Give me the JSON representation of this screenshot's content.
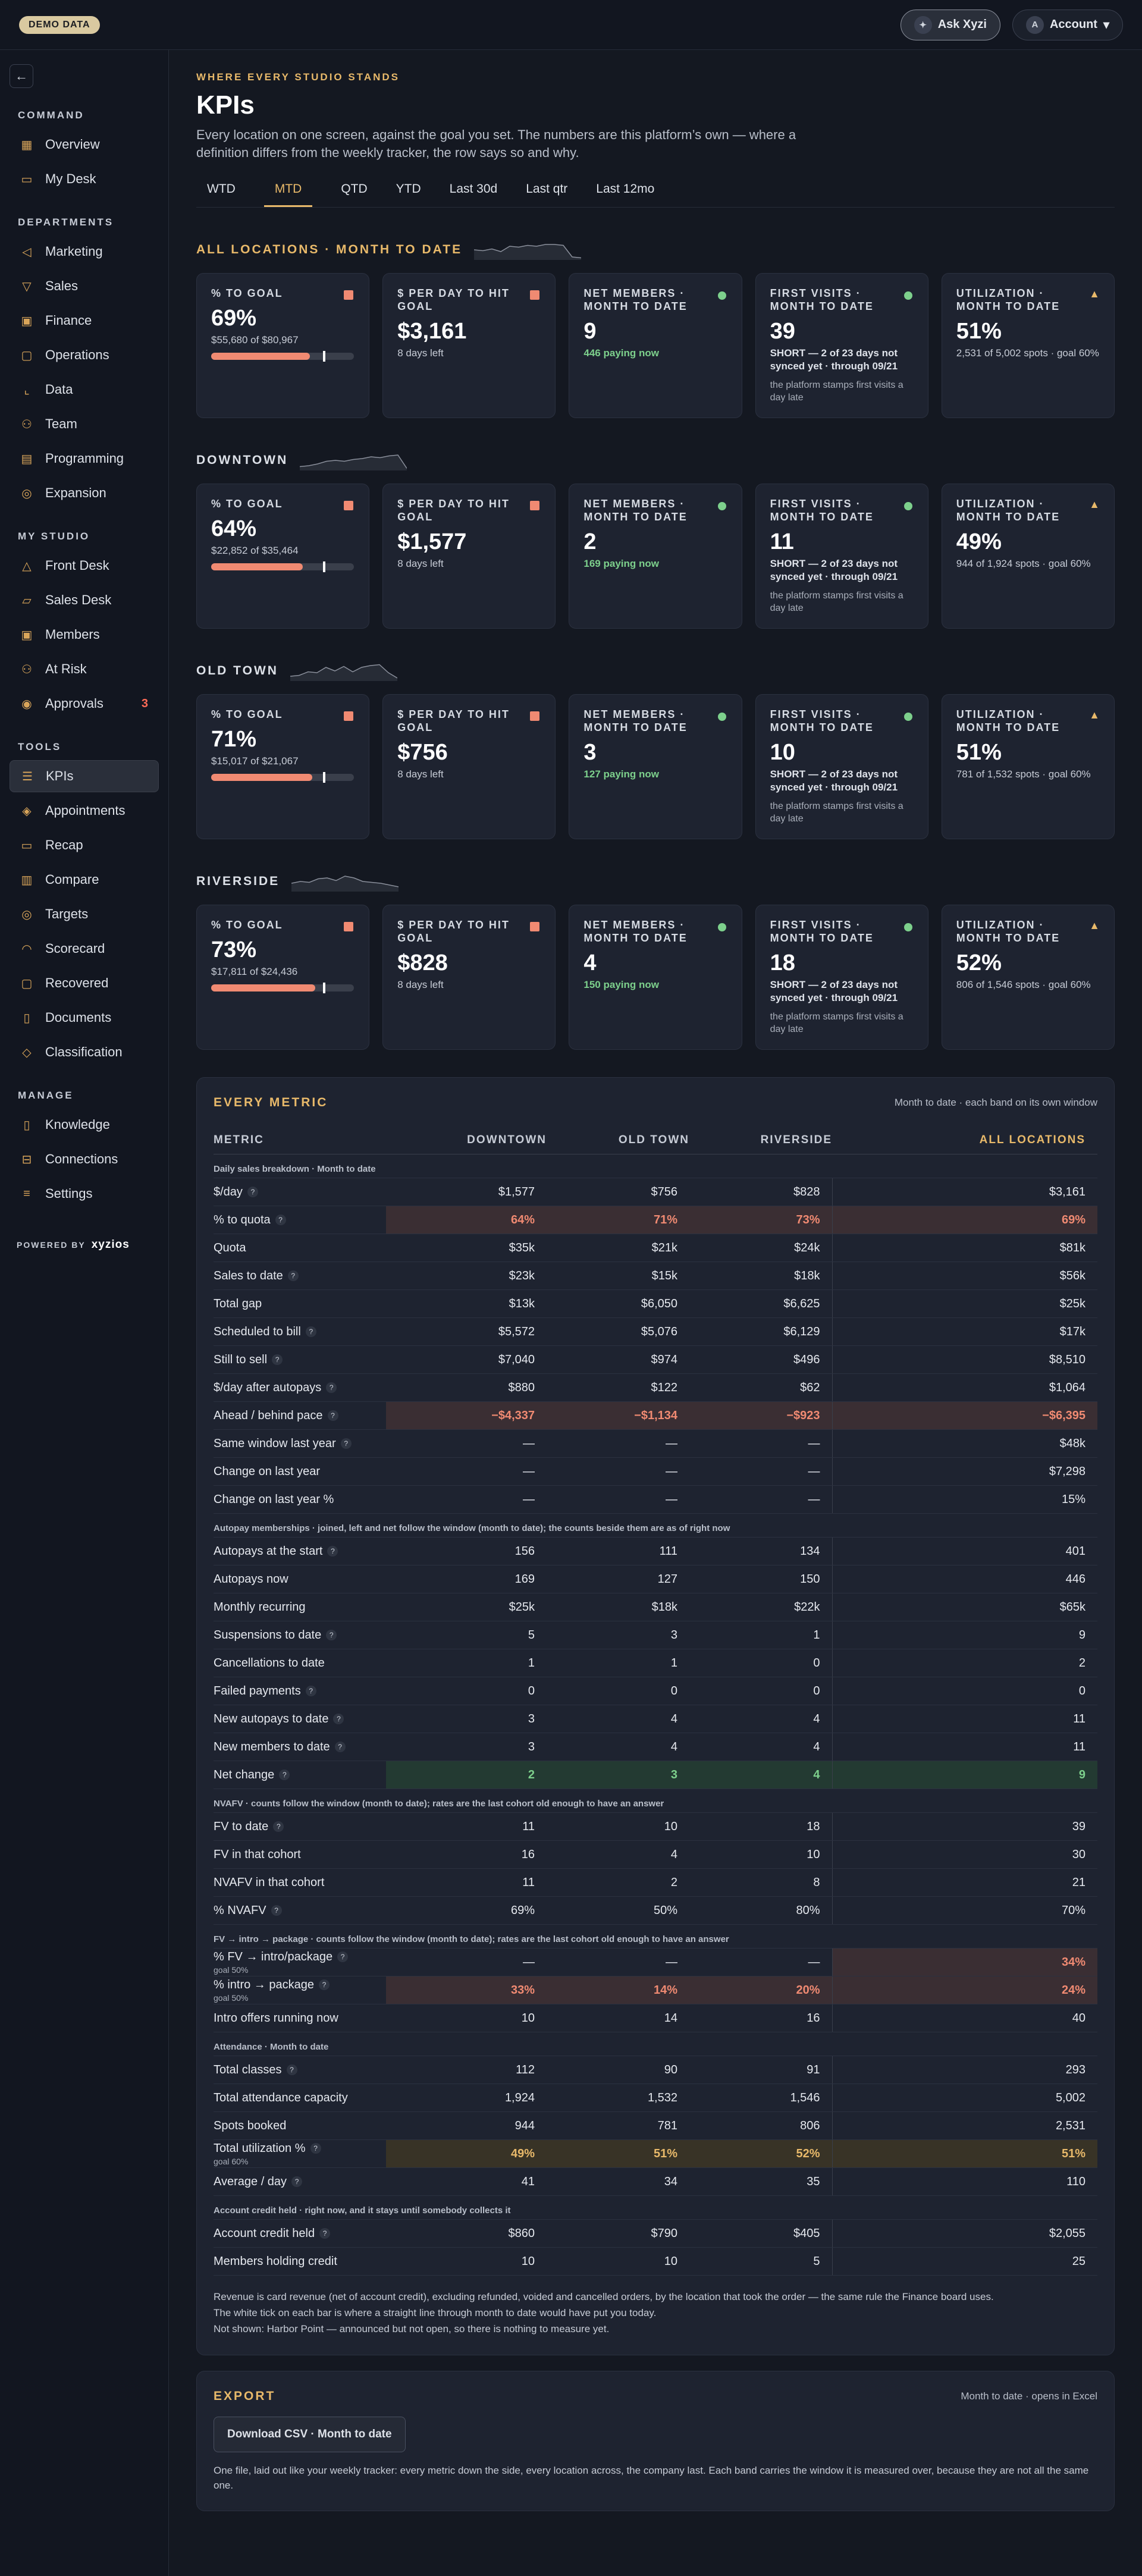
{
  "topbar": {
    "demo_label": "DEMO DATA",
    "ask_label": "Ask Xyzi",
    "account_label": "Account",
    "account_initial": "A",
    "ask_icon": "sparkle-icon",
    "chevron": "▾"
  },
  "sidebar": {
    "sections": [
      {
        "label": "COMMAND",
        "items": [
          {
            "label": "Overview",
            "icon": "▦"
          },
          {
            "label": "My Desk",
            "icon": "▭"
          }
        ]
      },
      {
        "label": "DEPARTMENTS",
        "items": [
          {
            "label": "Marketing",
            "icon": "◁"
          },
          {
            "label": "Sales",
            "icon": "▽"
          },
          {
            "label": "Finance",
            "icon": "▣"
          },
          {
            "label": "Operations",
            "icon": "▢"
          },
          {
            "label": "Data",
            "icon": "⌞"
          },
          {
            "label": "Team",
            "icon": "⚇"
          },
          {
            "label": "Programming",
            "icon": "▤"
          },
          {
            "label": "Expansion",
            "icon": "◎"
          }
        ]
      },
      {
        "label": "MY STUDIO",
        "items": [
          {
            "label": "Front Desk",
            "icon": "△"
          },
          {
            "label": "Sales Desk",
            "icon": "▱"
          },
          {
            "label": "Members",
            "icon": "▣"
          },
          {
            "label": "At Risk",
            "icon": "⚇"
          },
          {
            "label": "Approvals",
            "icon": "◉",
            "badge": "3"
          }
        ]
      },
      {
        "label": "TOOLS",
        "items": [
          {
            "label": "KPIs",
            "icon": "☰",
            "active": true
          },
          {
            "label": "Appointments",
            "icon": "◈"
          },
          {
            "label": "Recap",
            "icon": "▭"
          },
          {
            "label": "Compare",
            "icon": "▥"
          },
          {
            "label": "Targets",
            "icon": "◎"
          },
          {
            "label": "Scorecard",
            "icon": "◠"
          },
          {
            "label": "Recovered",
            "icon": "▢"
          },
          {
            "label": "Documents",
            "icon": "▯"
          },
          {
            "label": "Classification",
            "icon": "◇"
          }
        ]
      },
      {
        "label": "MANAGE",
        "items": [
          {
            "label": "Knowledge",
            "icon": "▯"
          },
          {
            "label": "Connections",
            "icon": "⊟"
          },
          {
            "label": "Settings",
            "icon": "≡"
          }
        ]
      }
    ],
    "powered_label": "POWERED BY",
    "powered_brand": "xyzios"
  },
  "header": {
    "eyebrow": "WHERE EVERY STUDIO STANDS",
    "title": "KPIs",
    "subtitle": "Every location on one screen, against the goal you set. The numbers are this platform’s own — where a definition differs from the weekly tracker, the row says so and why."
  },
  "tabs": [
    {
      "label": "WTD"
    },
    {
      "label": "MTD",
      "active": true
    },
    {
      "label": "QTD"
    },
    {
      "label": "YTD"
    },
    {
      "label": "Last 30d"
    },
    {
      "label": "Last qtr"
    },
    {
      "label": "Last 12mo"
    }
  ],
  "card_labels": {
    "goal": "% TO GOAL",
    "perday": "$ PER DAY TO HIT GOAL",
    "members": "NET MEMBERS · MONTH TO DATE",
    "visits": "FIRST VISITS · MONTH TO DATE",
    "util": "UTILIZATION · MONTH TO DATE"
  },
  "bands": [
    {
      "title": "ALL LOCATIONS · MONTH TO DATE",
      "gold": true,
      "spark": [
        0.5,
        0.55,
        0.45,
        0.6,
        0.3,
        0.35,
        0.25,
        0.3,
        0.2,
        0.2,
        0.25,
        0.9,
        0.95
      ],
      "goal_pct": "69%",
      "goal_fill": 0.69,
      "goal_sub": "$55,680 of $80,967",
      "perday": "$3,161",
      "perday_sub": "8 days left",
      "members": "9",
      "members_sub": "446 paying now",
      "visits": "39",
      "visits_sub": "SHORT — 2 of 23 days not synced yet · through 09/21",
      "visits_note": "the platform stamps first visits a day late",
      "util": "51%",
      "util_sub": "2,531 of 5,002 spots · goal 60%"
    },
    {
      "title": "DOWNTOWN",
      "gold": false,
      "spark": [
        0.85,
        0.8,
        0.7,
        0.55,
        0.5,
        0.55,
        0.45,
        0.4,
        0.3,
        0.35,
        0.25,
        0.2,
        0.95
      ],
      "goal_pct": "64%",
      "goal_fill": 0.64,
      "goal_sub": "$22,852 of $35,464",
      "perday": "$1,577",
      "perday_sub": "8 days left",
      "members": "2",
      "members_sub": "169 paying now",
      "visits": "11",
      "visits_sub": "SHORT — 2 of 23 days not synced yet · through 09/21",
      "visits_note": "the platform stamps first visits a day late",
      "util": "49%",
      "util_sub": "944 of 1,924 spots · goal 60%"
    },
    {
      "title": "OLD TOWN",
      "gold": false,
      "spark": [
        0.8,
        0.75,
        0.55,
        0.6,
        0.3,
        0.5,
        0.25,
        0.55,
        0.3,
        0.2,
        0.15,
        0.6,
        0.9
      ],
      "goal_pct": "71%",
      "goal_fill": 0.71,
      "goal_sub": "$15,017 of $21,067",
      "perday": "$756",
      "perday_sub": "8 days left",
      "members": "3",
      "members_sub": "127 paying now",
      "visits": "10",
      "visits_sub": "SHORT — 2 of 23 days not synced yet · through 09/21",
      "visits_note": "the platform stamps first visits a day late",
      "util": "51%",
      "util_sub": "781 of 1,532 spots · goal 60%"
    },
    {
      "title": "RIVERSIDE",
      "gold": false,
      "spark": [
        0.6,
        0.5,
        0.55,
        0.35,
        0.3,
        0.45,
        0.2,
        0.3,
        0.5,
        0.55,
        0.6,
        0.7,
        0.8
      ],
      "goal_pct": "73%",
      "goal_fill": 0.73,
      "goal_sub": "$17,811 of $24,436",
      "perday": "$828",
      "perday_sub": "8 days left",
      "members": "4",
      "members_sub": "150 paying now",
      "visits": "18",
      "visits_sub": "SHORT — 2 of 23 days not synced yet · through 09/21",
      "visits_note": "the platform stamps first visits a day late",
      "util": "52%",
      "util_sub": "806 of 1,546 spots · goal 60%"
    }
  ],
  "metrics": {
    "title": "EVERY METRIC",
    "note": "Month to date · each band on its own window",
    "headers": [
      "METRIC",
      "DOWNTOWN",
      "OLD TOWN",
      "RIVERSIDE",
      "ALL LOCATIONS"
    ],
    "groups": [
      {
        "label": "Daily sales breakdown · Month to date",
        "rows": [
          {
            "label": "$/day",
            "help": true,
            "v": [
              "$1,577",
              "$756",
              "$828",
              "$3,161"
            ]
          },
          {
            "label": "% to quota",
            "help": true,
            "style": "red",
            "v": [
              "64%",
              "71%",
              "73%",
              "69%"
            ]
          },
          {
            "label": "Quota",
            "v": [
              "$35k",
              "$21k",
              "$24k",
              "$81k"
            ]
          },
          {
            "label": "Sales to date",
            "help": true,
            "v": [
              "$23k",
              "$15k",
              "$18k",
              "$56k"
            ]
          },
          {
            "label": "Total gap",
            "v": [
              "$13k",
              "$6,050",
              "$6,625",
              "$25k"
            ]
          },
          {
            "label": "Scheduled to bill",
            "help": true,
            "v": [
              "$5,572",
              "$5,076",
              "$6,129",
              "$17k"
            ]
          },
          {
            "label": "Still to sell",
            "help": true,
            "v": [
              "$7,040",
              "$974",
              "$496",
              "$8,510"
            ]
          },
          {
            "label": "$/day after autopays",
            "help": true,
            "v": [
              "$880",
              "$122",
              "$62",
              "$1,064"
            ]
          },
          {
            "label": "Ahead / behind pace",
            "help": true,
            "style": "red",
            "v": [
              "−$4,337",
              "−$1,134",
              "−$923",
              "−$6,395"
            ]
          },
          {
            "label": "Same window last year",
            "help": true,
            "v": [
              "—",
              "—",
              "—",
              "$48k"
            ]
          },
          {
            "label": "Change on last year",
            "v": [
              "—",
              "—",
              "—",
              "$7,298"
            ]
          },
          {
            "label": "Change on last year %",
            "v": [
              "—",
              "—",
              "—",
              "15%"
            ]
          }
        ]
      },
      {
        "label": "Autopay memberships · joined, left and net follow the window (month to date); the counts beside them are as of right now",
        "rows": [
          {
            "label": "Autopays at the start",
            "help": true,
            "v": [
              "156",
              "111",
              "134",
              "401"
            ]
          },
          {
            "label": "Autopays now",
            "v": [
              "169",
              "127",
              "150",
              "446"
            ]
          },
          {
            "label": "Monthly recurring",
            "v": [
              "$25k",
              "$18k",
              "$22k",
              "$65k"
            ]
          },
          {
            "label": "Suspensions to date",
            "help": true,
            "v": [
              "5",
              "3",
              "1",
              "9"
            ]
          },
          {
            "label": "Cancellations to date",
            "v": [
              "1",
              "1",
              "0",
              "2"
            ]
          },
          {
            "label": "Failed payments",
            "help": true,
            "v": [
              "0",
              "0",
              "0",
              "0"
            ]
          },
          {
            "label": "New autopays to date",
            "help": true,
            "v": [
              "3",
              "4",
              "4",
              "11"
            ]
          },
          {
            "label": "New members to date",
            "help": true,
            "v": [
              "3",
              "4",
              "4",
              "11"
            ]
          },
          {
            "label": "Net change",
            "help": true,
            "style": "green",
            "v": [
              "2",
              "3",
              "4",
              "9"
            ]
          }
        ]
      },
      {
        "label": "NVAFV · counts follow the window (month to date); rates are the last cohort old enough to have an answer",
        "rows": [
          {
            "label": "FV to date",
            "help": true,
            "v": [
              "11",
              "10",
              "18",
              "39"
            ]
          },
          {
            "label": "FV in that cohort",
            "v": [
              "16",
              "4",
              "10",
              "30"
            ]
          },
          {
            "label": "NVAFV in that cohort",
            "v": [
              "11",
              "2",
              "8",
              "21"
            ]
          },
          {
            "label": "% NVAFV",
            "help": true,
            "v": [
              "69%",
              "50%",
              "80%",
              "70%"
            ]
          }
        ]
      },
      {
        "label": "FV → intro → package · counts follow the window (month to date); rates are the last cohort old enough to have an answer",
        "rows": [
          {
            "label": "% FV → intro/package",
            "help": true,
            "goal": "goal 50%",
            "style": "mixed",
            "hl": [
              false,
              false,
              false,
              true
            ],
            "v": [
              "—",
              "—",
              "—",
              "34%"
            ]
          },
          {
            "label": "% intro → package",
            "help": true,
            "goal": "goal 50%",
            "style": "red",
            "v": [
              "33%",
              "14%",
              "20%",
              "24%"
            ]
          },
          {
            "label": "Intro offers running now",
            "v": [
              "10",
              "14",
              "16",
              "40"
            ]
          }
        ]
      },
      {
        "label": "Attendance · Month to date",
        "rows": [
          {
            "label": "Total classes",
            "help": true,
            "v": [
              "112",
              "90",
              "91",
              "293"
            ]
          },
          {
            "label": "Total attendance capacity",
            "v": [
              "1,924",
              "1,532",
              "1,546",
              "5,002"
            ]
          },
          {
            "label": "Spots booked",
            "v": [
              "944",
              "781",
              "806",
              "2,531"
            ]
          },
          {
            "label": "Total utilization %",
            "help": true,
            "goal": "goal 60%",
            "style": "gold",
            "v": [
              "49%",
              "51%",
              "52%",
              "51%"
            ]
          },
          {
            "label": "Average / day",
            "help": true,
            "v": [
              "41",
              "34",
              "35",
              "110"
            ]
          }
        ]
      },
      {
        "label": "Account credit held · right now, and it stays until somebody collects it",
        "rows": [
          {
            "label": "Account credit held",
            "help": true,
            "v": [
              "$860",
              "$790",
              "$405",
              "$2,055"
            ]
          },
          {
            "label": "Members holding credit",
            "v": [
              "10",
              "10",
              "5",
              "25"
            ]
          }
        ]
      }
    ],
    "footnotes": [
      "Revenue is card revenue (net of account credit), excluding refunded, voided and cancelled orders, by the location that took the order — the same rule the Finance board uses.",
      "The white tick on each bar is where a straight line through month to date would have put you today.",
      "Not shown: Harbor Point — announced but not open, so there is nothing to measure yet."
    ]
  },
  "export": {
    "title": "EXPORT",
    "note": "Month to date · opens in Excel",
    "button": "Download CSV · Month to date",
    "desc": "One file, laid out like your weekly tracker: every metric down the side, every location across, the company last. Each band carries the window it is measured over, because they are not all the same one."
  }
}
